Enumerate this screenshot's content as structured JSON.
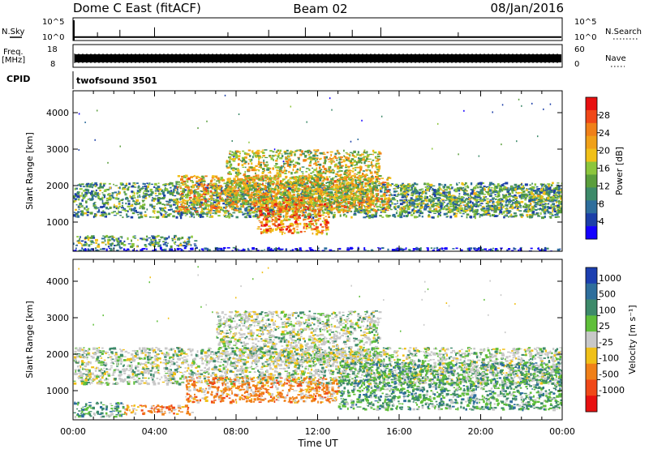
{
  "header": {
    "title": "Dome C East (fitACF)",
    "beam": "Beam 02",
    "date": "08/Jan/2016"
  },
  "left_labels": {
    "nsky": "N.Sky",
    "freq": "Freq.",
    "freq_unit": "[MHz]",
    "cpid": "CPID"
  },
  "right_labels": {
    "nsearch": "N.Search",
    "nave": "Nave"
  },
  "cpid_value": "twofsound 3501",
  "chart_data": [
    {
      "type": "line",
      "name": "noise",
      "y_ticks_left": [
        "10^5",
        "10^0"
      ],
      "y_ticks_right": [
        "10^5",
        "10^0"
      ],
      "series": [
        {
          "name": "N.Sky",
          "level": 0.15,
          "spikes_at_hours": [
            1.2,
            2.3,
            4.0,
            7.6,
            9.6,
            11.4,
            12.6,
            13.7,
            15.1,
            18.9
          ]
        }
      ]
    },
    {
      "type": "line",
      "name": "frequency",
      "y_ticks_left": [
        "18",
        "8"
      ],
      "y_ticks_right": [
        "60",
        "0"
      ],
      "freq_band_mhz": [
        9,
        12
      ]
    },
    {
      "type": "heatmap",
      "name": "power",
      "ylabel": "Slant Range [km]",
      "yticks": [
        1000,
        2000,
        3000,
        4000
      ],
      "ylim": [
        200,
        4600
      ],
      "colorbar": {
        "label": "Power [dB]",
        "ticks": [
          "4",
          "8",
          "12",
          "16",
          "20",
          "24",
          "28"
        ],
        "colors": [
          "#1400ff",
          "#1c3fa8",
          "#2e6e9c",
          "#3d8a6a",
          "#5a9e3c",
          "#8cc63c",
          "#f0c018",
          "#f0a018",
          "#f08018",
          "#f04818",
          "#e81010"
        ]
      },
      "echo_regions": [
        {
          "t0": 0.0,
          "t1": 24.0,
          "r0": 1150,
          "r1": 2100,
          "v": 0.35
        },
        {
          "t0": 5.0,
          "t1": 15.5,
          "r0": 1300,
          "r1": 2300,
          "v": 0.65
        },
        {
          "t0": 7.5,
          "t1": 15.0,
          "r0": 1500,
          "r1": 3000,
          "v": 0.55
        },
        {
          "t0": 9.0,
          "t1": 12.5,
          "r0": 700,
          "r1": 1700,
          "v": 0.75
        },
        {
          "t0": 0.0,
          "t1": 6.0,
          "r0": 350,
          "r1": 650,
          "v": 0.35
        },
        {
          "t0": 16.0,
          "t1": 24.0,
          "r0": 1300,
          "r1": 2000,
          "v": 0.4
        },
        {
          "t0": 0.0,
          "t1": 24.0,
          "r0": 220,
          "r1": 320,
          "v": 0.1
        }
      ]
    },
    {
      "type": "heatmap",
      "name": "velocity",
      "ylabel": "Slant Range [km]",
      "xlabel": "Time UT",
      "xticks": [
        "00:00",
        "04:00",
        "08:00",
        "12:00",
        "16:00",
        "20:00",
        "00:00"
      ],
      "yticks": [
        1000,
        2000,
        3000,
        4000
      ],
      "ylim": [
        200,
        4600
      ],
      "colorbar": {
        "label": "Velocity [m s⁻¹]",
        "ticks": [
          "1000",
          "500",
          "100",
          "25",
          "-25",
          "-100",
          "-500",
          "-1000"
        ],
        "colors": [
          "#1c3fb0",
          "#2e6e9c",
          "#3d8a6a",
          "#5fbf3a",
          "#c8c8c8",
          "#f0c018",
          "#f08018",
          "#f04818",
          "#e81010"
        ]
      },
      "echo_regions": [
        {
          "t0": 0.0,
          "t1": 24.0,
          "r0": 1200,
          "r1": 2200,
          "v": "grey"
        },
        {
          "t0": 7.0,
          "t1": 15.0,
          "r0": 1800,
          "r1": 3200,
          "v": "grey"
        },
        {
          "t0": 5.5,
          "t1": 13.0,
          "r0": 700,
          "r1": 1400,
          "v": "orange"
        },
        {
          "t0": 2.5,
          "t1": 5.8,
          "r0": 380,
          "r1": 620,
          "v": "orange"
        },
        {
          "t0": 0.0,
          "t1": 2.5,
          "r0": 300,
          "r1": 700,
          "v": "green"
        },
        {
          "t0": 13.0,
          "t1": 24.0,
          "r0": 500,
          "r1": 1800,
          "v": "green"
        }
      ]
    }
  ]
}
